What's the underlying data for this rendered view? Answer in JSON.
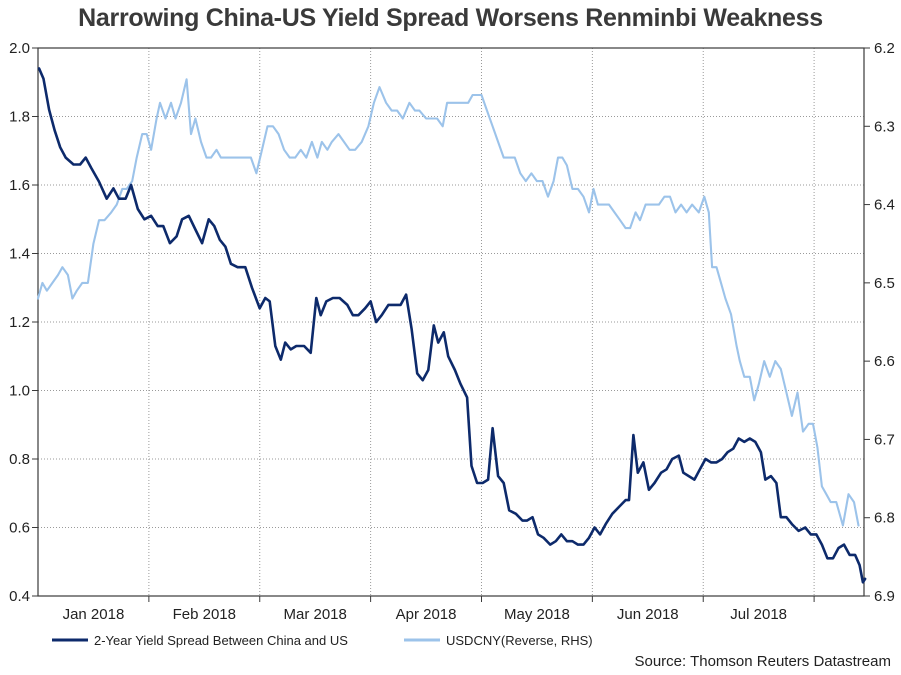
{
  "chart_data": {
    "type": "line",
    "title": "Narrowing China-US Yield Spread Worsens Renminbi Weakness",
    "x_labels": [
      "Jan 2018",
      "Feb 2018",
      "Mar 2018",
      "Apr 2018",
      "May 2018",
      "Jun 2018",
      "Jul 2018"
    ],
    "x_range": [
      0,
      7.45
    ],
    "y_left": {
      "min": 0.4,
      "max": 2.0,
      "ticks": [
        "0.4",
        "0.6",
        "0.8",
        "1.0",
        "1.2",
        "1.4",
        "1.6",
        "1.8",
        "2.0"
      ]
    },
    "y_right": {
      "min": 6.2,
      "max": 6.9,
      "reversed": true,
      "ticks": [
        "6.2",
        "6.3",
        "6.4",
        "6.5",
        "6.6",
        "6.7",
        "6.8",
        "6.9"
      ]
    },
    "series": [
      {
        "name": "2-Year Yield Spread Between China and US",
        "axis": "left",
        "color": "#0d2a6b",
        "points": [
          [
            0.01,
            1.94
          ],
          [
            0.05,
            1.91
          ],
          [
            0.1,
            1.82
          ],
          [
            0.15,
            1.76
          ],
          [
            0.2,
            1.71
          ],
          [
            0.25,
            1.68
          ],
          [
            0.32,
            1.66
          ],
          [
            0.38,
            1.66
          ],
          [
            0.43,
            1.68
          ],
          [
            0.48,
            1.65
          ],
          [
            0.55,
            1.61
          ],
          [
            0.62,
            1.56
          ],
          [
            0.68,
            1.59
          ],
          [
            0.73,
            1.56
          ],
          [
            0.79,
            1.56
          ],
          [
            0.84,
            1.6
          ],
          [
            0.9,
            1.53
          ],
          [
            0.96,
            1.5
          ],
          [
            1.02,
            1.51
          ],
          [
            1.08,
            1.48
          ],
          [
            1.13,
            1.48
          ],
          [
            1.19,
            1.43
          ],
          [
            1.25,
            1.45
          ],
          [
            1.3,
            1.5
          ],
          [
            1.36,
            1.51
          ],
          [
            1.42,
            1.47
          ],
          [
            1.48,
            1.43
          ],
          [
            1.54,
            1.5
          ],
          [
            1.59,
            1.48
          ],
          [
            1.64,
            1.44
          ],
          [
            1.69,
            1.42
          ],
          [
            1.74,
            1.37
          ],
          [
            1.8,
            1.36
          ],
          [
            1.87,
            1.36
          ],
          [
            1.93,
            1.3
          ],
          [
            2.0,
            1.24
          ],
          [
            2.05,
            1.27
          ],
          [
            2.09,
            1.26
          ],
          [
            2.14,
            1.13
          ],
          [
            2.19,
            1.09
          ],
          [
            2.23,
            1.14
          ],
          [
            2.28,
            1.12
          ],
          [
            2.33,
            1.13
          ],
          [
            2.4,
            1.13
          ],
          [
            2.46,
            1.11
          ],
          [
            2.51,
            1.27
          ],
          [
            2.55,
            1.22
          ],
          [
            2.6,
            1.26
          ],
          [
            2.66,
            1.27
          ],
          [
            2.72,
            1.27
          ],
          [
            2.79,
            1.25
          ],
          [
            2.84,
            1.22
          ],
          [
            2.89,
            1.22
          ],
          [
            2.95,
            1.24
          ],
          [
            3.0,
            1.26
          ],
          [
            3.05,
            1.2
          ],
          [
            3.1,
            1.22
          ],
          [
            3.16,
            1.25
          ],
          [
            3.22,
            1.25
          ],
          [
            3.27,
            1.25
          ],
          [
            3.32,
            1.28
          ],
          [
            3.37,
            1.18
          ],
          [
            3.42,
            1.05
          ],
          [
            3.47,
            1.03
          ],
          [
            3.52,
            1.06
          ],
          [
            3.57,
            1.19
          ],
          [
            3.61,
            1.14
          ],
          [
            3.66,
            1.17
          ],
          [
            3.7,
            1.1
          ],
          [
            3.76,
            1.06
          ],
          [
            3.81,
            1.02
          ],
          [
            3.87,
            0.98
          ],
          [
            3.91,
            0.78
          ],
          [
            3.96,
            0.73
          ],
          [
            4.01,
            0.73
          ],
          [
            4.06,
            0.74
          ],
          [
            4.1,
            0.89
          ],
          [
            4.15,
            0.75
          ],
          [
            4.2,
            0.73
          ],
          [
            4.25,
            0.65
          ],
          [
            4.31,
            0.64
          ],
          [
            4.37,
            0.62
          ],
          [
            4.41,
            0.62
          ],
          [
            4.46,
            0.63
          ],
          [
            4.51,
            0.58
          ],
          [
            4.56,
            0.57
          ],
          [
            4.62,
            0.55
          ],
          [
            4.67,
            0.56
          ],
          [
            4.72,
            0.58
          ],
          [
            4.77,
            0.56
          ],
          [
            4.82,
            0.56
          ],
          [
            4.87,
            0.55
          ],
          [
            4.92,
            0.55
          ],
          [
            4.97,
            0.57
          ],
          [
            5.02,
            0.6
          ],
          [
            5.07,
            0.58
          ],
          [
            5.12,
            0.61
          ],
          [
            5.18,
            0.64
          ],
          [
            5.24,
            0.66
          ],
          [
            5.3,
            0.68
          ],
          [
            5.33,
            0.68
          ],
          [
            5.37,
            0.87
          ],
          [
            5.41,
            0.76
          ],
          [
            5.46,
            0.79
          ],
          [
            5.51,
            0.71
          ],
          [
            5.56,
            0.73
          ],
          [
            5.62,
            0.76
          ],
          [
            5.67,
            0.77
          ],
          [
            5.72,
            0.8
          ],
          [
            5.78,
            0.81
          ],
          [
            5.82,
            0.76
          ],
          [
            5.87,
            0.75
          ],
          [
            5.92,
            0.74
          ],
          [
            5.97,
            0.77
          ],
          [
            6.02,
            0.8
          ],
          [
            6.07,
            0.79
          ],
          [
            6.12,
            0.79
          ],
          [
            6.17,
            0.8
          ],
          [
            6.22,
            0.82
          ],
          [
            6.27,
            0.83
          ],
          [
            6.32,
            0.86
          ],
          [
            6.37,
            0.85
          ],
          [
            6.42,
            0.86
          ],
          [
            6.47,
            0.85
          ],
          [
            6.52,
            0.82
          ],
          [
            6.56,
            0.74
          ],
          [
            6.61,
            0.75
          ],
          [
            6.66,
            0.73
          ],
          [
            6.7,
            0.63
          ],
          [
            6.75,
            0.63
          ],
          [
            6.8,
            0.61
          ],
          [
            6.86,
            0.59
          ],
          [
            6.92,
            0.6
          ],
          [
            6.97,
            0.58
          ],
          [
            7.02,
            0.58
          ],
          [
            7.07,
            0.55
          ],
          [
            7.12,
            0.51
          ],
          [
            7.17,
            0.51
          ],
          [
            7.22,
            0.54
          ],
          [
            7.27,
            0.55
          ],
          [
            7.32,
            0.52
          ],
          [
            7.37,
            0.52
          ],
          [
            7.41,
            0.49
          ],
          [
            7.44,
            0.44
          ],
          [
            7.46,
            0.45
          ]
        ]
      },
      {
        "name": "USDCNY(Reverse, RHS)",
        "axis": "right",
        "color": "#9cc3ea",
        "points": [
          [
            0.0,
            6.52
          ],
          [
            0.04,
            6.5
          ],
          [
            0.08,
            6.51
          ],
          [
            0.13,
            6.5
          ],
          [
            0.18,
            6.49
          ],
          [
            0.22,
            6.48
          ],
          [
            0.27,
            6.49
          ],
          [
            0.31,
            6.52
          ],
          [
            0.35,
            6.51
          ],
          [
            0.4,
            6.5
          ],
          [
            0.45,
            6.5
          ],
          [
            0.5,
            6.45
          ],
          [
            0.55,
            6.42
          ],
          [
            0.6,
            6.42
          ],
          [
            0.66,
            6.41
          ],
          [
            0.71,
            6.4
          ],
          [
            0.76,
            6.38
          ],
          [
            0.8,
            6.38
          ],
          [
            0.85,
            6.37
          ],
          [
            0.89,
            6.34
          ],
          [
            0.94,
            6.31
          ],
          [
            0.98,
            6.31
          ],
          [
            1.02,
            6.33
          ],
          [
            1.07,
            6.29
          ],
          [
            1.1,
            6.27
          ],
          [
            1.15,
            6.29
          ],
          [
            1.2,
            6.27
          ],
          [
            1.24,
            6.29
          ],
          [
            1.29,
            6.27
          ],
          [
            1.34,
            6.24
          ],
          [
            1.38,
            6.31
          ],
          [
            1.42,
            6.29
          ],
          [
            1.47,
            6.32
          ],
          [
            1.52,
            6.34
          ],
          [
            1.56,
            6.34
          ],
          [
            1.61,
            6.33
          ],
          [
            1.65,
            6.34
          ],
          [
            1.7,
            6.34
          ],
          [
            1.75,
            6.34
          ],
          [
            1.8,
            6.34
          ],
          [
            1.86,
            6.34
          ],
          [
            1.92,
            6.34
          ],
          [
            1.97,
            6.36
          ],
          [
            2.02,
            6.33
          ],
          [
            2.07,
            6.3
          ],
          [
            2.12,
            6.3
          ],
          [
            2.17,
            6.31
          ],
          [
            2.22,
            6.33
          ],
          [
            2.27,
            6.34
          ],
          [
            2.32,
            6.34
          ],
          [
            2.37,
            6.33
          ],
          [
            2.42,
            6.34
          ],
          [
            2.47,
            6.32
          ],
          [
            2.52,
            6.34
          ],
          [
            2.56,
            6.32
          ],
          [
            2.61,
            6.33
          ],
          [
            2.65,
            6.32
          ],
          [
            2.71,
            6.31
          ],
          [
            2.76,
            6.32
          ],
          [
            2.81,
            6.33
          ],
          [
            2.86,
            6.33
          ],
          [
            2.92,
            6.32
          ],
          [
            2.98,
            6.3
          ],
          [
            3.03,
            6.27
          ],
          [
            3.08,
            6.25
          ],
          [
            3.14,
            6.27
          ],
          [
            3.19,
            6.28
          ],
          [
            3.24,
            6.28
          ],
          [
            3.29,
            6.29
          ],
          [
            3.35,
            6.27
          ],
          [
            3.4,
            6.28
          ],
          [
            3.44,
            6.28
          ],
          [
            3.5,
            6.29
          ],
          [
            3.55,
            6.29
          ],
          [
            3.6,
            6.29
          ],
          [
            3.65,
            6.3
          ],
          [
            3.69,
            6.27
          ],
          [
            3.73,
            6.27
          ],
          [
            3.78,
            6.27
          ],
          [
            3.83,
            6.27
          ],
          [
            3.88,
            6.27
          ],
          [
            3.92,
            6.26
          ],
          [
            3.96,
            6.26
          ],
          [
            4.0,
            6.26
          ],
          [
            4.05,
            6.28
          ],
          [
            4.1,
            6.3
          ],
          [
            4.15,
            6.32
          ],
          [
            4.2,
            6.34
          ],
          [
            4.25,
            6.34
          ],
          [
            4.3,
            6.34
          ],
          [
            4.35,
            6.36
          ],
          [
            4.4,
            6.37
          ],
          [
            4.45,
            6.36
          ],
          [
            4.5,
            6.37
          ],
          [
            4.55,
            6.37
          ],
          [
            4.6,
            6.39
          ],
          [
            4.65,
            6.37
          ],
          [
            4.69,
            6.34
          ],
          [
            4.73,
            6.34
          ],
          [
            4.77,
            6.35
          ],
          [
            4.82,
            6.38
          ],
          [
            4.87,
            6.38
          ],
          [
            4.92,
            6.39
          ],
          [
            4.97,
            6.41
          ],
          [
            5.01,
            6.38
          ],
          [
            5.05,
            6.4
          ],
          [
            5.1,
            6.4
          ],
          [
            5.15,
            6.4
          ],
          [
            5.2,
            6.41
          ],
          [
            5.25,
            6.42
          ],
          [
            5.3,
            6.43
          ],
          [
            5.34,
            6.43
          ],
          [
            5.39,
            6.41
          ],
          [
            5.43,
            6.42
          ],
          [
            5.48,
            6.4
          ],
          [
            5.54,
            6.4
          ],
          [
            5.6,
            6.4
          ],
          [
            5.65,
            6.39
          ],
          [
            5.7,
            6.39
          ],
          [
            5.75,
            6.41
          ],
          [
            5.8,
            6.4
          ],
          [
            5.85,
            6.41
          ],
          [
            5.9,
            6.4
          ],
          [
            5.96,
            6.41
          ],
          [
            6.01,
            6.39
          ],
          [
            6.05,
            6.41
          ],
          [
            6.08,
            6.48
          ],
          [
            6.12,
            6.48
          ],
          [
            6.16,
            6.5
          ],
          [
            6.2,
            6.52
          ],
          [
            6.25,
            6.54
          ],
          [
            6.3,
            6.58
          ],
          [
            6.33,
            6.6
          ],
          [
            6.37,
            6.62
          ],
          [
            6.42,
            6.62
          ],
          [
            6.46,
            6.65
          ],
          [
            6.5,
            6.63
          ],
          [
            6.55,
            6.6
          ],
          [
            6.6,
            6.62
          ],
          [
            6.65,
            6.6
          ],
          [
            6.7,
            6.61
          ],
          [
            6.75,
            6.64
          ],
          [
            6.8,
            6.67
          ],
          [
            6.85,
            6.64
          ],
          [
            6.9,
            6.69
          ],
          [
            6.95,
            6.68
          ],
          [
            6.99,
            6.68
          ],
          [
            7.03,
            6.71
          ],
          [
            7.07,
            6.76
          ],
          [
            7.11,
            6.77
          ],
          [
            7.15,
            6.78
          ],
          [
            7.2,
            6.78
          ],
          [
            7.26,
            6.81
          ],
          [
            7.31,
            6.77
          ],
          [
            7.36,
            6.78
          ],
          [
            7.4,
            6.81
          ]
        ]
      }
    ]
  },
  "source": "Source: Thomson Reuters Datastream"
}
